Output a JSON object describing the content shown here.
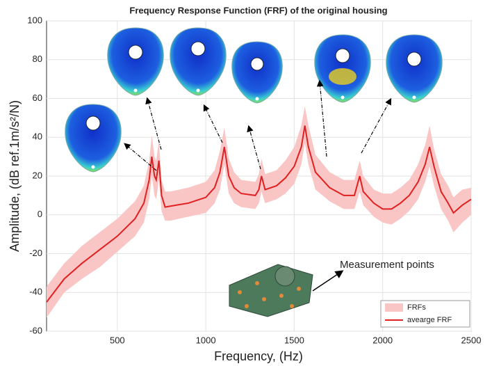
{
  "chart_data": {
    "type": "band-line",
    "title": "Frequency Response Function (FRF) of the original housing",
    "x_label": "Frequency, (Hz)",
    "y_label": "Amplitude, (dB ref.1m/s²/N)",
    "annotation": "Measurement points",
    "x": [
      100,
      200,
      300,
      400,
      500,
      600,
      650,
      680,
      695,
      710,
      720,
      735,
      750,
      770,
      800,
      900,
      1000,
      1050,
      1080,
      1105,
      1130,
      1160,
      1200,
      1280,
      1300,
      1315,
      1335,
      1400,
      1450,
      1500,
      1540,
      1560,
      1580,
      1620,
      1700,
      1780,
      1840,
      1870,
      1890,
      1950,
      2000,
      2050,
      2100,
      2150,
      2200,
      2240,
      2265,
      2290,
      2330,
      2370,
      2400,
      2450,
      2500
    ],
    "series": [
      {
        "name": "FRFs",
        "color": "#f9c5c5",
        "upper": [
          -37,
          -25,
          -16,
          -9,
          -2,
          7,
          15,
          28,
          41,
          30,
          28,
          38,
          18,
          12,
          12,
          14,
          17,
          23,
          33,
          45,
          29,
          22,
          18,
          17,
          21,
          29,
          21,
          23,
          28,
          35,
          46,
          56,
          46,
          31,
          22,
          18,
          18,
          28,
          20,
          13,
          11,
          11,
          14,
          18,
          26,
          36,
          46,
          34,
          21,
          15,
          9,
          13,
          14
        ],
        "lower": [
          -53,
          -40,
          -33,
          -27,
          -19,
          -11,
          -4,
          8,
          20,
          10,
          8,
          18,
          2,
          -3,
          -3,
          -1,
          1,
          6,
          13,
          26,
          11,
          6,
          4,
          3,
          6,
          12,
          6,
          8,
          11,
          16,
          26,
          37,
          26,
          13,
          7,
          3,
          3,
          12,
          5,
          -1,
          -4,
          -5,
          -2,
          2,
          8,
          17,
          25,
          15,
          3,
          -3,
          -9,
          -4,
          0
        ]
      },
      {
        "name": "avearge FRF",
        "color": "#e02020",
        "values": [
          -45,
          -33,
          -25,
          -18,
          -11,
          -2,
          6,
          18,
          30,
          20,
          18,
          28,
          10,
          4,
          4.5,
          6,
          9,
          14,
          22,
          35,
          20,
          14,
          11,
          10,
          13,
          20,
          13,
          15,
          19,
          25,
          35,
          46,
          35,
          22,
          14,
          10,
          10,
          20,
          12,
          6,
          3,
          3,
          6,
          10,
          17,
          26,
          35,
          25,
          12,
          6,
          1,
          5,
          8
        ]
      }
    ],
    "xlim": [
      100,
      2500
    ],
    "xticks": [
      500,
      1000,
      1500,
      2000,
      2500
    ],
    "ylim": [
      -60,
      100
    ],
    "yticks": [
      -60,
      -40,
      -20,
      0,
      20,
      40,
      60,
      80,
      100
    ],
    "grid": true,
    "legend": "lower-right"
  }
}
